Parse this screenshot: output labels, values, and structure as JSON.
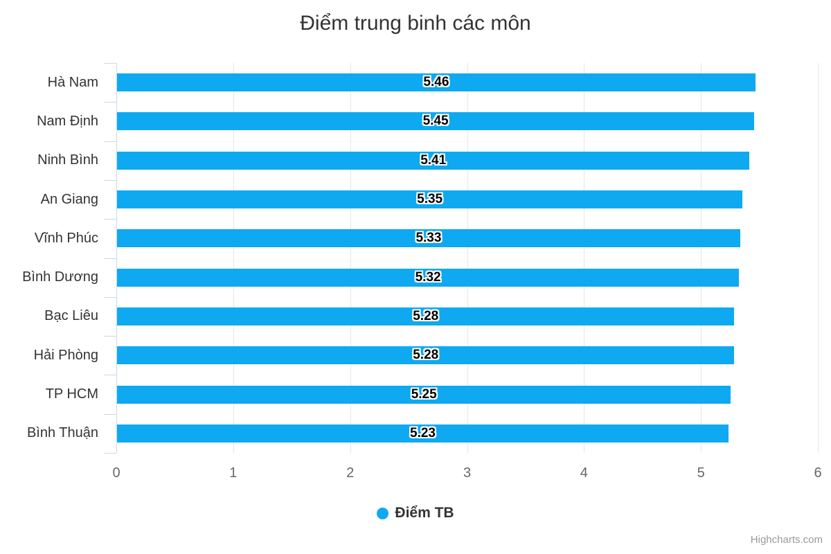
{
  "chart_data": {
    "type": "bar",
    "orientation": "horizontal",
    "title": "Điểm trung binh các môn",
    "categories": [
      "Hà Nam",
      "Nam Định",
      "Ninh Bình",
      "An Giang",
      "Vĩnh Phúc",
      "Bình Dương",
      "Bạc Liêu",
      "Hải Phòng",
      "TP HCM",
      "Bình Thuận"
    ],
    "series": [
      {
        "name": "Điểm TB",
        "values": [
          5.46,
          5.45,
          5.41,
          5.35,
          5.33,
          5.32,
          5.28,
          5.28,
          5.25,
          5.23
        ]
      }
    ],
    "data_labels": [
      "5.46",
      "5.45",
      "5.41",
      "5.35",
      "5.33",
      "5.32",
      "5.28",
      "5.28",
      "5.25",
      "5.23"
    ],
    "xlabel": "",
    "ylabel": "",
    "xlim": [
      0,
      6
    ],
    "x_ticks": [
      "0",
      "1",
      "2",
      "3",
      "4",
      "5",
      "6"
    ],
    "grid": true,
    "legend_position": "bottom-center",
    "colors": {
      "bar": "#0ea9f0",
      "grid_line": "#e6e6e6",
      "axis_line": "#ccd6eb",
      "title_text": "#333333",
      "category_label_text": "#333333",
      "tick_label_text": "#666666",
      "data_label_text": "#000000",
      "data_label_outline": "#ffffff",
      "legend_text": "#333333",
      "credits_text": "#999999"
    }
  },
  "credits": {
    "label": "Highcharts.com"
  }
}
